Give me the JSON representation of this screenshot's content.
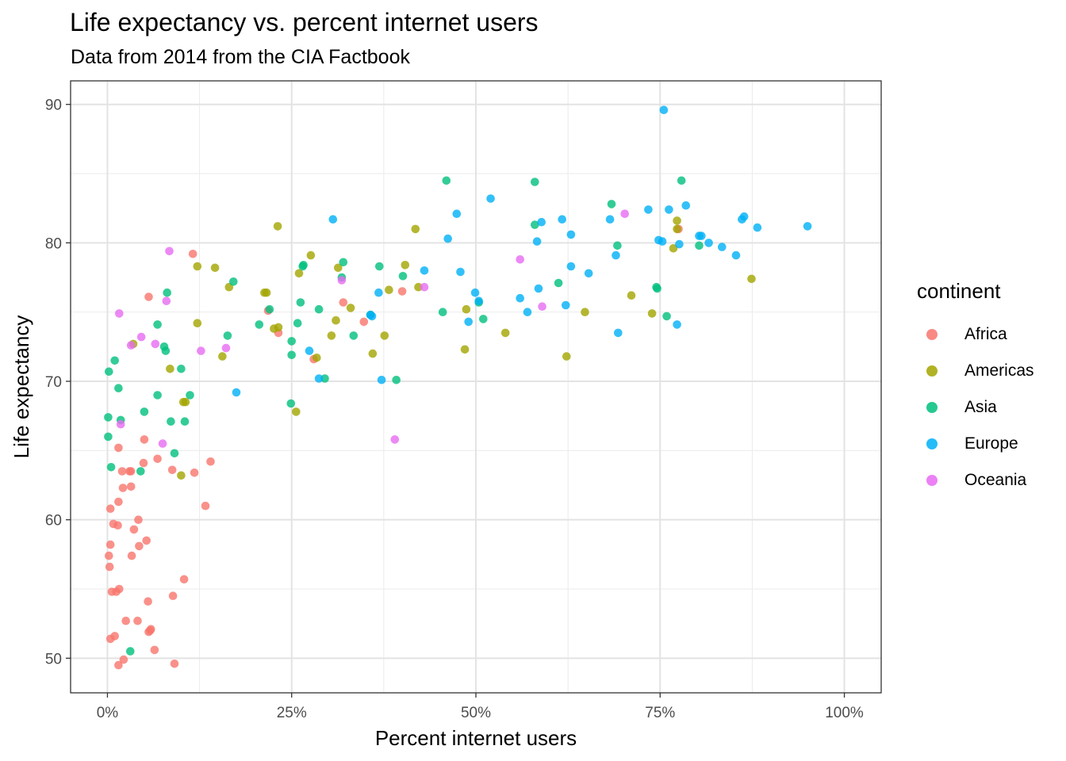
{
  "chart_data": {
    "type": "scatter",
    "title": "Life expectancy vs. percent internet users",
    "subtitle": "Data from 2014 from the CIA Factbook",
    "xlabel": "Percent internet users",
    "ylabel": "Life expectancy",
    "xlim": [
      -0.05,
      1.05
    ],
    "ylim": [
      47.5,
      91.7
    ],
    "x_ticks": [
      0,
      0.25,
      0.5,
      0.75,
      1.0
    ],
    "x_tick_labels": [
      "0%",
      "25%",
      "50%",
      "75%",
      "100%"
    ],
    "y_ticks": [
      50,
      60,
      70,
      80,
      90
    ],
    "y_tick_labels": [
      "50",
      "60",
      "70",
      "80",
      "90"
    ],
    "grid": true,
    "legend": {
      "title": "continent",
      "placement": "right"
    },
    "series": [
      {
        "name": "Africa",
        "color": "#F8766D",
        "points": [
          [
            0.002,
            57.4
          ],
          [
            0.003,
            56.6
          ],
          [
            0.004,
            58.2
          ],
          [
            0.004,
            60.8
          ],
          [
            0.004,
            51.4
          ],
          [
            0.006,
            54.8
          ],
          [
            0.008,
            59.7
          ],
          [
            0.01,
            51.6
          ],
          [
            0.012,
            54.8
          ],
          [
            0.014,
            59.6
          ],
          [
            0.015,
            61.3
          ],
          [
            0.015,
            65.2
          ],
          [
            0.015,
            49.5
          ],
          [
            0.016,
            55.0
          ],
          [
            0.02,
            63.5
          ],
          [
            0.021,
            62.3
          ],
          [
            0.022,
            49.9
          ],
          [
            0.025,
            52.7
          ],
          [
            0.03,
            63.5
          ],
          [
            0.032,
            62.4
          ],
          [
            0.032,
            63.5
          ],
          [
            0.033,
            57.4
          ],
          [
            0.036,
            59.3
          ],
          [
            0.041,
            52.7
          ],
          [
            0.042,
            60.0
          ],
          [
            0.043,
            58.1
          ],
          [
            0.049,
            64.1
          ],
          [
            0.05,
            65.8
          ],
          [
            0.053,
            58.5
          ],
          [
            0.055,
            54.1
          ],
          [
            0.056,
            76.1
          ],
          [
            0.056,
            51.9
          ],
          [
            0.058,
            52.0
          ],
          [
            0.059,
            52.1
          ],
          [
            0.064,
            50.6
          ],
          [
            0.068,
            64.4
          ],
          [
            0.088,
            63.6
          ],
          [
            0.089,
            54.5
          ],
          [
            0.091,
            49.6
          ],
          [
            0.104,
            55.7
          ],
          [
            0.116,
            79.2
          ],
          [
            0.118,
            63.4
          ],
          [
            0.14,
            64.2
          ],
          [
            0.133,
            61.0
          ],
          [
            0.218,
            75.1
          ],
          [
            0.232,
            73.5
          ],
          [
            0.28,
            71.6
          ],
          [
            0.32,
            75.7
          ],
          [
            0.348,
            74.3
          ],
          [
            0.4,
            76.5
          ],
          [
            0.775,
            81.0
          ]
        ]
      },
      {
        "name": "Americas",
        "color": "#A3A500",
        "points": [
          [
            0.035,
            72.7
          ],
          [
            0.085,
            70.9
          ],
          [
            0.1,
            63.2
          ],
          [
            0.103,
            68.5
          ],
          [
            0.106,
            68.5
          ],
          [
            0.122,
            78.3
          ],
          [
            0.122,
            74.2
          ],
          [
            0.146,
            78.2
          ],
          [
            0.156,
            71.8
          ],
          [
            0.165,
            76.8
          ],
          [
            0.213,
            76.4
          ],
          [
            0.216,
            76.4
          ],
          [
            0.226,
            73.8
          ],
          [
            0.231,
            81.2
          ],
          [
            0.232,
            73.9
          ],
          [
            0.256,
            67.8
          ],
          [
            0.26,
            77.8
          ],
          [
            0.276,
            79.1
          ],
          [
            0.284,
            71.7
          ],
          [
            0.304,
            73.3
          ],
          [
            0.31,
            74.4
          ],
          [
            0.313,
            78.2
          ],
          [
            0.33,
            75.3
          ],
          [
            0.36,
            72.0
          ],
          [
            0.376,
            73.3
          ],
          [
            0.382,
            76.6
          ],
          [
            0.418,
            81.0
          ],
          [
            0.422,
            76.8
          ],
          [
            0.404,
            78.4
          ],
          [
            0.485,
            72.3
          ],
          [
            0.487,
            75.2
          ],
          [
            0.54,
            73.5
          ],
          [
            0.648,
            75.0
          ],
          [
            0.623,
            71.8
          ],
          [
            0.711,
            76.2
          ],
          [
            0.739,
            74.9
          ],
          [
            0.768,
            79.6
          ],
          [
            0.773,
            81.6
          ],
          [
            0.773,
            81.0
          ],
          [
            0.874,
            77.4
          ]
        ]
      },
      {
        "name": "Asia",
        "color": "#00BF7D",
        "points": [
          [
            0.001,
            67.4
          ],
          [
            0.001,
            66.0
          ],
          [
            0.002,
            70.7
          ],
          [
            0.005,
            63.8
          ],
          [
            0.01,
            71.5
          ],
          [
            0.015,
            69.5
          ],
          [
            0.018,
            67.2
          ],
          [
            0.031,
            50.5
          ],
          [
            0.045,
            63.5
          ],
          [
            0.05,
            67.8
          ],
          [
            0.068,
            74.1
          ],
          [
            0.068,
            69.0
          ],
          [
            0.077,
            72.5
          ],
          [
            0.079,
            72.2
          ],
          [
            0.081,
            76.4
          ],
          [
            0.086,
            67.1
          ],
          [
            0.091,
            64.8
          ],
          [
            0.1,
            70.9
          ],
          [
            0.105,
            67.1
          ],
          [
            0.112,
            69.0
          ],
          [
            0.163,
            73.3
          ],
          [
            0.171,
            77.2
          ],
          [
            0.206,
            74.1
          ],
          [
            0.22,
            75.2
          ],
          [
            0.249,
            68.4
          ],
          [
            0.25,
            72.9
          ],
          [
            0.25,
            71.9
          ],
          [
            0.258,
            74.2
          ],
          [
            0.262,
            75.7
          ],
          [
            0.265,
            78.3
          ],
          [
            0.266,
            78.4
          ],
          [
            0.287,
            75.2
          ],
          [
            0.295,
            70.2
          ],
          [
            0.318,
            77.5
          ],
          [
            0.32,
            78.6
          ],
          [
            0.334,
            73.3
          ],
          [
            0.357,
            74.8
          ],
          [
            0.369,
            78.3
          ],
          [
            0.392,
            70.1
          ],
          [
            0.401,
            77.6
          ],
          [
            0.455,
            75.0
          ],
          [
            0.46,
            84.5
          ],
          [
            0.504,
            75.7
          ],
          [
            0.51,
            74.5
          ],
          [
            0.58,
            81.3
          ],
          [
            0.58,
            84.4
          ],
          [
            0.612,
            77.1
          ],
          [
            0.684,
            82.8
          ],
          [
            0.692,
            79.8
          ],
          [
            0.745,
            76.8
          ],
          [
            0.746,
            76.7
          ],
          [
            0.759,
            74.7
          ],
          [
            0.779,
            84.5
          ],
          [
            0.803,
            79.8
          ]
        ]
      },
      {
        "name": "Europe",
        "color": "#00B0F6",
        "points": [
          [
            0.175,
            69.2
          ],
          [
            0.274,
            72.2
          ],
          [
            0.287,
            70.2
          ],
          [
            0.306,
            81.7
          ],
          [
            0.357,
            74.8
          ],
          [
            0.359,
            74.7
          ],
          [
            0.368,
            76.4
          ],
          [
            0.372,
            70.1
          ],
          [
            0.43,
            78.0
          ],
          [
            0.462,
            80.3
          ],
          [
            0.474,
            82.1
          ],
          [
            0.479,
            77.9
          ],
          [
            0.49,
            74.3
          ],
          [
            0.499,
            76.4
          ],
          [
            0.504,
            75.8
          ],
          [
            0.52,
            83.2
          ],
          [
            0.56,
            76.0
          ],
          [
            0.57,
            75.0
          ],
          [
            0.583,
            80.1
          ],
          [
            0.585,
            76.7
          ],
          [
            0.589,
            81.5
          ],
          [
            0.617,
            81.7
          ],
          [
            0.622,
            75.5
          ],
          [
            0.629,
            78.3
          ],
          [
            0.629,
            80.6
          ],
          [
            0.653,
            77.8
          ],
          [
            0.682,
            81.7
          ],
          [
            0.69,
            79.1
          ],
          [
            0.693,
            73.5
          ],
          [
            0.734,
            82.4
          ],
          [
            0.748,
            80.2
          ],
          [
            0.753,
            80.1
          ],
          [
            0.755,
            89.6
          ],
          [
            0.762,
            82.4
          ],
          [
            0.773,
            74.1
          ],
          [
            0.776,
            79.9
          ],
          [
            0.785,
            82.7
          ],
          [
            0.803,
            80.5
          ],
          [
            0.806,
            80.5
          ],
          [
            0.816,
            80.0
          ],
          [
            0.834,
            79.7
          ],
          [
            0.853,
            79.1
          ],
          [
            0.861,
            81.7
          ],
          [
            0.864,
            81.9
          ],
          [
            0.882,
            81.1
          ],
          [
            0.95,
            81.2
          ]
        ]
      },
      {
        "name": "Oceania",
        "color": "#E76BF3",
        "points": [
          [
            0.016,
            74.9
          ],
          [
            0.018,
            66.9
          ],
          [
            0.032,
            72.6
          ],
          [
            0.046,
            73.2
          ],
          [
            0.065,
            72.7
          ],
          [
            0.075,
            65.5
          ],
          [
            0.08,
            75.8
          ],
          [
            0.084,
            79.4
          ],
          [
            0.127,
            72.2
          ],
          [
            0.161,
            72.4
          ],
          [
            0.318,
            77.3
          ],
          [
            0.39,
            65.8
          ],
          [
            0.43,
            76.8
          ],
          [
            0.56,
            78.8
          ],
          [
            0.59,
            75.4
          ],
          [
            0.702,
            82.1
          ]
        ]
      }
    ]
  }
}
